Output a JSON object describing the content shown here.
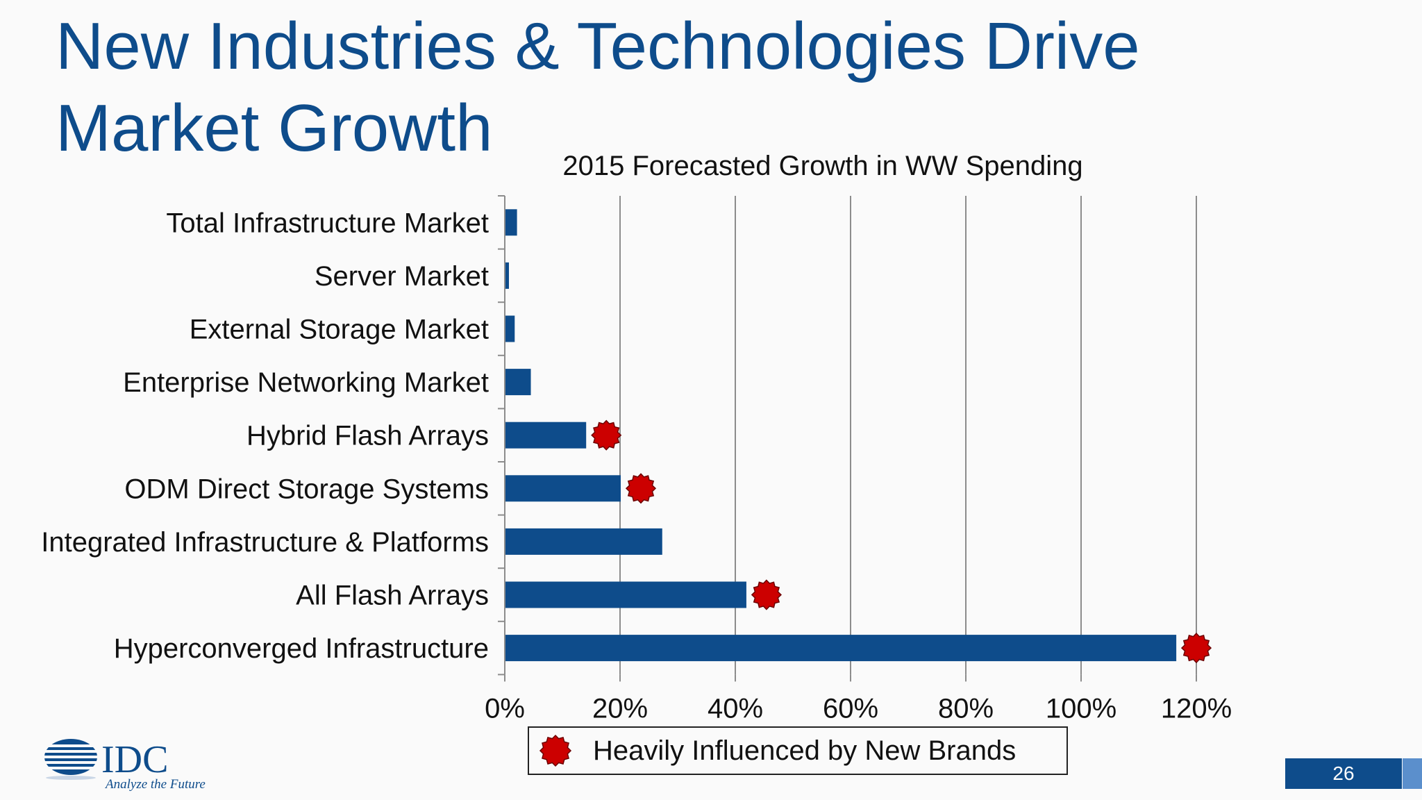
{
  "slide": {
    "title_line1": "New Industries & Technologies Drive",
    "title_line2": "Market Growth",
    "page_number": "26"
  },
  "logo": {
    "name": "IDC",
    "tagline": "Analyze the Future"
  },
  "legend": {
    "label": "Heavily Influenced by New Brands",
    "marker_icon": "red-star-badge-icon",
    "marker_color": "#cc0000"
  },
  "colors": {
    "bar": "#0e4c8b",
    "title": "#0e4c8b",
    "marker": "#cc0000"
  },
  "chart_data": {
    "type": "bar",
    "orientation": "horizontal",
    "title": "2015 Forecasted Growth in WW Spending",
    "xlabel": "",
    "ylabel": "",
    "categories": [
      "Total Infrastructure Market",
      "Server Market",
      "External Storage Market",
      "Enterprise Networking Market",
      "Hybrid Flash Arrays",
      "ODM Direct Storage Systems",
      "Integrated Infrastructure & Platforms",
      "All Flash Arrays",
      "Hyperconverged Infrastructure"
    ],
    "values": [
      2,
      0.6,
      1.6,
      4.4,
      14,
      20,
      27.2,
      41.8,
      116.4
    ],
    "unit": "%",
    "heavily_influenced_by_new_brands": [
      false,
      false,
      false,
      false,
      true,
      true,
      false,
      true,
      true
    ],
    "xlim": [
      0,
      120
    ],
    "x_ticks": [
      "0%",
      "20%",
      "40%",
      "60%",
      "80%",
      "100%",
      "120%"
    ],
    "grid": "vertical",
    "legend_position": "bottom"
  }
}
